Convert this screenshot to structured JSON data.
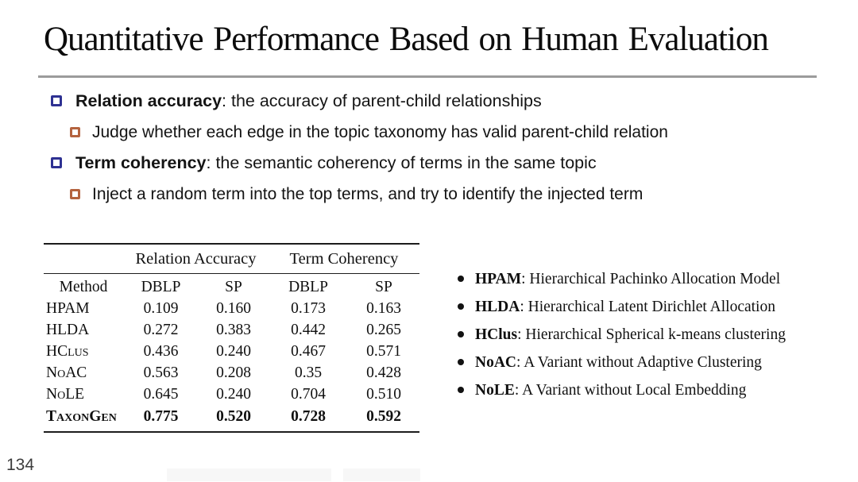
{
  "slide": {
    "title": "Quantitative Performance Based on Human Evaluation",
    "page_number": "134"
  },
  "bullets": [
    {
      "level": 1,
      "term": "Relation accuracy",
      "text": ": the accuracy of parent-child relationships"
    },
    {
      "level": 2,
      "term": "",
      "text": "Judge whether each edge in the topic taxonomy has valid parent-child relation"
    },
    {
      "level": 1,
      "term": "Term coherency",
      "text": ": the semantic coherency of terms in the same topic"
    },
    {
      "level": 2,
      "term": "",
      "text": "Inject a random term into the top terms, and try to identify the injected term"
    }
  ],
  "table": {
    "group_headers": [
      "Relation Accuracy",
      "Term Coherency"
    ],
    "columns": [
      "Method",
      "DBLP",
      "SP",
      "DBLP",
      "SP"
    ],
    "rows": [
      {
        "method": "HPAM",
        "smallcaps": false,
        "bold": false,
        "values": [
          "0.109",
          "0.160",
          "0.173",
          "0.163"
        ]
      },
      {
        "method": "HLDA",
        "smallcaps": false,
        "bold": false,
        "values": [
          "0.272",
          "0.383",
          "0.442",
          "0.265"
        ]
      },
      {
        "method": "HClus",
        "smallcaps": true,
        "bold": false,
        "values": [
          "0.436",
          "0.240",
          "0.467",
          "0.571"
        ]
      },
      {
        "method": "NoAC",
        "smallcaps": true,
        "bold": false,
        "values": [
          "0.563",
          "0.208",
          "0.35",
          "0.428"
        ]
      },
      {
        "method": "NoLE",
        "smallcaps": true,
        "bold": false,
        "values": [
          "0.645",
          "0.240",
          "0.704",
          "0.510"
        ]
      },
      {
        "method": "TaxonGen",
        "smallcaps": true,
        "bold": true,
        "values": [
          "0.775",
          "0.520",
          "0.728",
          "0.592"
        ]
      }
    ]
  },
  "legend": [
    {
      "term": "HPAM",
      "definition": "Hierarchical Pachinko Allocation Model"
    },
    {
      "term": "HLDA",
      "definition": "Hierarchical Latent Dirichlet Allocation"
    },
    {
      "term": "HClus",
      "definition": "Hierarchical Spherical k-means clustering"
    },
    {
      "term": "NoAC",
      "definition": "A Variant without Adaptive Clustering"
    },
    {
      "term": "NoLE",
      "definition": "A Variant without Local Embedding"
    }
  ],
  "colors": {
    "bullet_level1": "#2e3192",
    "bullet_level2": "#b4633f",
    "title_rule": "#9c9c9c",
    "table_rule": "#1c1c1c",
    "text": "#161616"
  }
}
